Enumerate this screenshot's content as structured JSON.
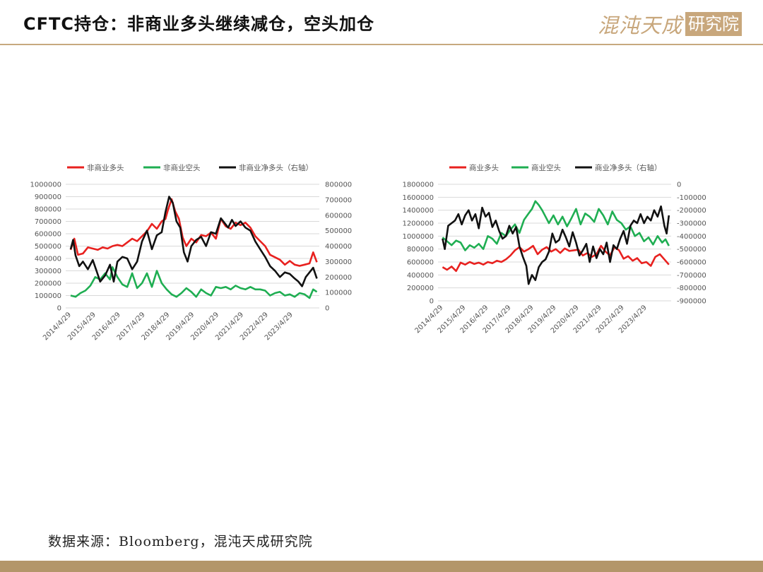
{
  "header": {
    "title": "CFTC持仓：非商业多头继续减仓，空头加仓",
    "logo_text": "混沌天成",
    "logo_box_text": "研究院"
  },
  "footer": {
    "source": "数据来源：Bloomberg，混沌天成研究院"
  },
  "colors": {
    "red": "#e8211f",
    "green": "#1fae52",
    "black": "#111111",
    "rule": "#c7a97f",
    "bar": "#b3966a",
    "grid": "#d9d9d9"
  },
  "chart_data": [
    {
      "type": "line",
      "title": "",
      "legend_position": "top",
      "grid": true,
      "x_tick_labels": [
        "2014/4/29",
        "2015/4/29",
        "2016/4/29",
        "2017/4/29",
        "2018/4/29",
        "2019/4/29",
        "2020/4/29",
        "2021/4/29",
        "2022/4/29",
        "2023/4/29"
      ],
      "x_range": [
        2014.1,
        2024.4
      ],
      "y_left": {
        "min": 0,
        "max": 1000000,
        "ticks": [
          "0",
          "100000",
          "200000",
          "300000",
          "400000",
          "500000",
          "600000",
          "700000",
          "800000",
          "900000",
          "1000000"
        ]
      },
      "y_right": {
        "min": 0,
        "max": 800000,
        "ticks": [
          "0",
          "100000",
          "200000",
          "300000",
          "400000",
          "500000",
          "600000",
          "700000",
          "800000"
        ]
      },
      "series": [
        {
          "name": "非商业多头",
          "color": "red",
          "axis": "left",
          "x": [
            2014.3,
            2014.45,
            2014.6,
            2014.8,
            2015.0,
            2015.2,
            2015.4,
            2015.6,
            2015.8,
            2016.0,
            2016.2,
            2016.4,
            2016.6,
            2016.8,
            2017.0,
            2017.2,
            2017.4,
            2017.6,
            2017.8,
            2018.0,
            2018.15,
            2018.25,
            2018.4,
            2018.55,
            2018.7,
            2018.85,
            2019.0,
            2019.2,
            2019.4,
            2019.6,
            2019.8,
            2020.0,
            2020.2,
            2020.4,
            2020.6,
            2020.8,
            2021.0,
            2021.2,
            2021.4,
            2021.6,
            2021.8,
            2022.0,
            2022.2,
            2022.4,
            2022.6,
            2022.8,
            2023.0,
            2023.2,
            2023.4,
            2023.6,
            2023.8,
            2024.0,
            2024.15,
            2024.3
          ],
          "y": [
            470000,
            560000,
            430000,
            440000,
            490000,
            480000,
            470000,
            490000,
            480000,
            500000,
            510000,
            500000,
            530000,
            560000,
            540000,
            580000,
            620000,
            680000,
            640000,
            700000,
            720000,
            790000,
            880000,
            780000,
            720000,
            570000,
            500000,
            560000,
            530000,
            590000,
            580000,
            610000,
            560000,
            720000,
            660000,
            640000,
            690000,
            670000,
            690000,
            650000,
            580000,
            540000,
            500000,
            430000,
            410000,
            390000,
            350000,
            380000,
            350000,
            340000,
            350000,
            360000,
            450000,
            370000
          ]
        },
        {
          "name": "非商业空头",
          "color": "green",
          "axis": "left",
          "x": [
            2014.3,
            2014.5,
            2014.7,
            2014.9,
            2015.1,
            2015.3,
            2015.5,
            2015.7,
            2015.9,
            2016.0,
            2016.2,
            2016.4,
            2016.6,
            2016.8,
            2017.0,
            2017.2,
            2017.4,
            2017.6,
            2017.8,
            2018.0,
            2018.2,
            2018.4,
            2018.6,
            2018.8,
            2019.0,
            2019.2,
            2019.4,
            2019.6,
            2019.8,
            2020.0,
            2020.2,
            2020.4,
            2020.6,
            2020.8,
            2021.0,
            2021.2,
            2021.4,
            2021.6,
            2021.8,
            2022.0,
            2022.2,
            2022.4,
            2022.6,
            2022.8,
            2023.0,
            2023.2,
            2023.4,
            2023.6,
            2023.8,
            2024.0,
            2024.15,
            2024.3
          ],
          "y": [
            100000,
            90000,
            120000,
            140000,
            180000,
            250000,
            230000,
            280000,
            230000,
            330000,
            250000,
            190000,
            170000,
            280000,
            160000,
            200000,
            280000,
            170000,
            300000,
            200000,
            150000,
            110000,
            90000,
            120000,
            160000,
            130000,
            90000,
            150000,
            120000,
            100000,
            170000,
            160000,
            170000,
            150000,
            180000,
            160000,
            150000,
            170000,
            150000,
            150000,
            140000,
            100000,
            120000,
            130000,
            100000,
            110000,
            90000,
            120000,
            110000,
            80000,
            150000,
            130000
          ]
        },
        {
          "name": "非商业净多头（右轴）",
          "color": "black",
          "axis": "right",
          "x": [
            2014.3,
            2014.4,
            2014.5,
            2014.65,
            2014.8,
            2015.0,
            2015.2,
            2015.35,
            2015.5,
            2015.7,
            2015.9,
            2016.05,
            2016.2,
            2016.4,
            2016.6,
            2016.8,
            2017.0,
            2017.2,
            2017.4,
            2017.6,
            2017.8,
            2018.0,
            2018.15,
            2018.3,
            2018.45,
            2018.6,
            2018.75,
            2018.9,
            2019.05,
            2019.2,
            2019.4,
            2019.6,
            2019.8,
            2020.0,
            2020.2,
            2020.4,
            2020.55,
            2020.7,
            2020.85,
            2021.0,
            2021.2,
            2021.4,
            2021.6,
            2021.8,
            2022.0,
            2022.2,
            2022.4,
            2022.6,
            2022.8,
            2023.0,
            2023.2,
            2023.4,
            2023.55,
            2023.7,
            2023.85,
            2024.0,
            2024.15,
            2024.3
          ],
          "y": [
            380000,
            440000,
            340000,
            270000,
            300000,
            250000,
            310000,
            240000,
            170000,
            210000,
            280000,
            170000,
            300000,
            330000,
            320000,
            250000,
            300000,
            430000,
            500000,
            380000,
            470000,
            490000,
            620000,
            720000,
            680000,
            560000,
            520000,
            360000,
            300000,
            400000,
            440000,
            460000,
            400000,
            490000,
            480000,
            580000,
            550000,
            520000,
            570000,
            530000,
            560000,
            520000,
            500000,
            430000,
            380000,
            330000,
            270000,
            240000,
            200000,
            230000,
            220000,
            190000,
            170000,
            140000,
            200000,
            230000,
            260000,
            190000
          ]
        }
      ]
    },
    {
      "type": "line",
      "title": "",
      "legend_position": "top",
      "grid": true,
      "x_tick_labels": [
        "2014/4/29",
        "2015/4/29",
        "2016/4/29",
        "2017/4/29",
        "2018/4/29",
        "2019/4/29",
        "2020/4/29",
        "2021/4/29",
        "2022/4/29",
        "2023/4/29"
      ],
      "x_range": [
        2014.1,
        2024.4
      ],
      "y_left": {
        "min": 0,
        "max": 1800000,
        "ticks": [
          "0",
          "200000",
          "400000",
          "600000",
          "800000",
          "1000000",
          "1200000",
          "1400000",
          "1600000",
          "1800000"
        ]
      },
      "y_right": {
        "min": -900000,
        "max": 0,
        "ticks": [
          "-900000",
          "-800000",
          "-700000",
          "-600000",
          "-500000",
          "-400000",
          "-300000",
          "-200000",
          "-100000",
          "0"
        ]
      },
      "series": [
        {
          "name": "商业多头",
          "color": "red",
          "axis": "left",
          "x": [
            2014.3,
            2014.5,
            2014.7,
            2014.9,
            2015.1,
            2015.3,
            2015.5,
            2015.7,
            2015.9,
            2016.1,
            2016.3,
            2016.5,
            2016.7,
            2016.9,
            2017.1,
            2017.3,
            2017.5,
            2017.7,
            2017.9,
            2018.1,
            2018.3,
            2018.5,
            2018.7,
            2018.9,
            2019.1,
            2019.3,
            2019.5,
            2019.7,
            2019.9,
            2020.1,
            2020.3,
            2020.5,
            2020.7,
            2020.9,
            2021.1,
            2021.3,
            2021.5,
            2021.7,
            2021.9,
            2022.1,
            2022.3,
            2022.5,
            2022.7,
            2022.9,
            2023.1,
            2023.3,
            2023.5,
            2023.7,
            2023.9,
            2024.1,
            2024.3
          ],
          "y": [
            520000,
            480000,
            530000,
            460000,
            590000,
            560000,
            600000,
            570000,
            590000,
            560000,
            600000,
            580000,
            620000,
            600000,
            640000,
            700000,
            780000,
            830000,
            760000,
            800000,
            850000,
            720000,
            790000,
            830000,
            760000,
            800000,
            740000,
            810000,
            770000,
            780000,
            790000,
            700000,
            740000,
            680000,
            720000,
            850000,
            760000,
            700000,
            830000,
            780000,
            650000,
            690000,
            620000,
            660000,
            580000,
            600000,
            540000,
            680000,
            720000,
            640000,
            560000
          ]
        },
        {
          "name": "商业空头",
          "color": "green",
          "axis": "left",
          "x": [
            2014.3,
            2014.5,
            2014.7,
            2014.9,
            2015.1,
            2015.3,
            2015.5,
            2015.7,
            2015.9,
            2016.1,
            2016.3,
            2016.5,
            2016.7,
            2016.9,
            2017.1,
            2017.3,
            2017.5,
            2017.7,
            2017.9,
            2018.1,
            2018.25,
            2018.4,
            2018.55,
            2018.7,
            2018.85,
            2019.0,
            2019.2,
            2019.4,
            2019.6,
            2019.8,
            2020.0,
            2020.2,
            2020.4,
            2020.6,
            2020.8,
            2021.0,
            2021.2,
            2021.4,
            2021.6,
            2021.8,
            2022.0,
            2022.2,
            2022.4,
            2022.6,
            2022.8,
            2023.0,
            2023.2,
            2023.4,
            2023.6,
            2023.8,
            2024.0,
            2024.15,
            2024.3
          ],
          "y": [
            980000,
            920000,
            860000,
            930000,
            900000,
            780000,
            860000,
            820000,
            880000,
            800000,
            1000000,
            960000,
            880000,
            1050000,
            1000000,
            1100000,
            1180000,
            1050000,
            1250000,
            1350000,
            1420000,
            1540000,
            1480000,
            1400000,
            1300000,
            1200000,
            1320000,
            1180000,
            1300000,
            1150000,
            1280000,
            1420000,
            1180000,
            1350000,
            1300000,
            1220000,
            1420000,
            1320000,
            1180000,
            1380000,
            1250000,
            1200000,
            1100000,
            1150000,
            1000000,
            1050000,
            920000,
            980000,
            870000,
            1000000,
            900000,
            950000,
            850000
          ]
        },
        {
          "name": "商业净多头（右轴）",
          "color": "black",
          "axis": "right",
          "x": [
            2014.3,
            2014.4,
            2014.55,
            2014.7,
            2014.85,
            2015.0,
            2015.15,
            2015.3,
            2015.45,
            2015.6,
            2015.75,
            2015.9,
            2016.05,
            2016.2,
            2016.35,
            2016.5,
            2016.65,
            2016.8,
            2016.95,
            2017.1,
            2017.25,
            2017.4,
            2017.55,
            2017.7,
            2017.85,
            2018.0,
            2018.1,
            2018.25,
            2018.4,
            2018.55,
            2018.7,
            2018.85,
            2019.0,
            2019.15,
            2019.3,
            2019.45,
            2019.6,
            2019.75,
            2019.9,
            2020.05,
            2020.2,
            2020.35,
            2020.5,
            2020.65,
            2020.8,
            2020.95,
            2021.1,
            2021.25,
            2021.4,
            2021.55,
            2021.7,
            2021.85,
            2022.0,
            2022.15,
            2022.3,
            2022.45,
            2022.6,
            2022.75,
            2022.9,
            2023.05,
            2023.2,
            2023.35,
            2023.5,
            2023.65,
            2023.8,
            2023.95,
            2024.1,
            2024.2,
            2024.3
          ],
          "y": [
            -420000,
            -500000,
            -320000,
            -300000,
            -280000,
            -230000,
            -310000,
            -240000,
            -200000,
            -280000,
            -230000,
            -340000,
            -180000,
            -250000,
            -220000,
            -330000,
            -280000,
            -360000,
            -420000,
            -400000,
            -320000,
            -380000,
            -330000,
            -480000,
            -560000,
            -630000,
            -770000,
            -700000,
            -740000,
            -640000,
            -600000,
            -580000,
            -520000,
            -380000,
            -450000,
            -430000,
            -350000,
            -410000,
            -480000,
            -370000,
            -450000,
            -550000,
            -510000,
            -460000,
            -600000,
            -480000,
            -570000,
            -500000,
            -540000,
            -450000,
            -600000,
            -470000,
            -500000,
            -420000,
            -360000,
            -460000,
            -320000,
            -280000,
            -300000,
            -230000,
            -300000,
            -250000,
            -280000,
            -200000,
            -250000,
            -170000,
            -320000,
            -380000,
            -240000
          ]
        }
      ]
    }
  ]
}
